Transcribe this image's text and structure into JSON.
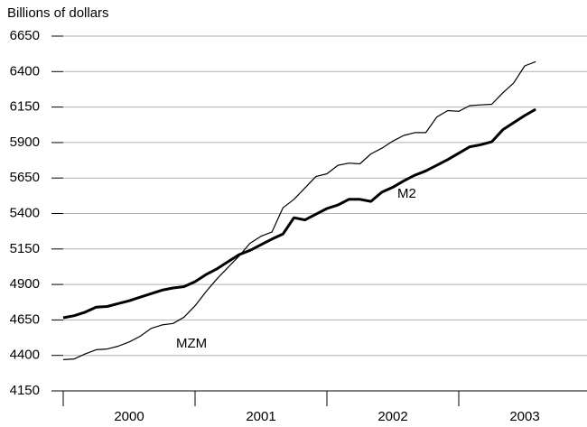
{
  "chart_data": {
    "type": "line",
    "y_axis_label": "Billions of dollars",
    "years": [
      "2000",
      "2001",
      "2002",
      "2003"
    ],
    "series": [
      {
        "name": "M2",
        "color": "#000000",
        "values": [
          4665,
          4680,
          4705,
          4740,
          4745,
          4765,
          4785,
          4810,
          4835,
          4860,
          4875,
          4885,
          4920,
          4970,
          5010,
          5060,
          5110,
          5140,
          5180,
          5220,
          5255,
          5370,
          5355,
          5395,
          5435,
          5460,
          5500,
          5500,
          5485,
          5550,
          5585,
          5630,
          5670,
          5700,
          5740,
          5780,
          5825,
          5870,
          5885,
          5905,
          5990,
          6040,
          6090,
          6135
        ]
      },
      {
        "name": "MZM",
        "color": "#000000",
        "values": [
          4370,
          4375,
          4410,
          4440,
          4445,
          4465,
          4495,
          4535,
          4590,
          4615,
          4625,
          4670,
          4750,
          4850,
          4940,
          5020,
          5100,
          5190,
          5240,
          5270,
          5440,
          5500,
          5580,
          5660,
          5680,
          5740,
          5755,
          5750,
          5820,
          5860,
          5910,
          5950,
          5970,
          5970,
          6080,
          6125,
          6120,
          6160,
          6165,
          6170,
          6250,
          6320,
          6440,
          6470
        ]
      }
    ],
    "ylim": [
      4150,
      6650
    ],
    "yticks": [
      4150,
      4400,
      4650,
      4900,
      5150,
      5400,
      5650,
      5900,
      6150,
      6400,
      6650
    ],
    "grid": true
  }
}
